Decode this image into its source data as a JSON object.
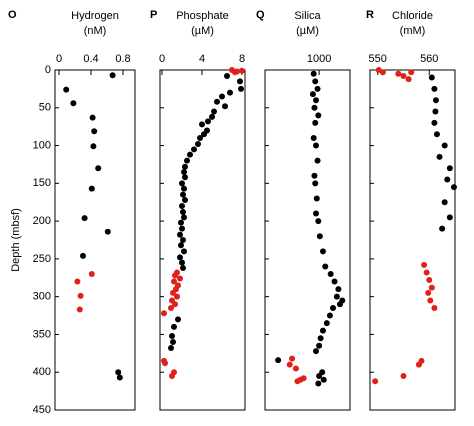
{
  "chart_data": [
    {
      "type": "scatter",
      "panel_label": "O",
      "title": "Hydrogen",
      "subtitle": "(nM)",
      "y_label": "Depth (mbsf)",
      "xlim": [
        -0.05,
        0.95
      ],
      "xticks": [
        0,
        0.4,
        0.8
      ],
      "ylim": [
        0,
        450
      ],
      "y_inverted": true,
      "yticks": [
        0,
        50,
        100,
        150,
        200,
        250,
        300,
        350,
        400,
        450
      ],
      "series": [
        {
          "color": "#000000",
          "x": [
            0.67,
            0.09,
            0.18,
            0.42,
            0.44,
            0.43,
            0.49,
            0.41,
            0.32,
            0.61,
            0.3,
            0.74,
            0.76
          ],
          "y": [
            7,
            26,
            44,
            63,
            81,
            101,
            130,
            157,
            196,
            214,
            246,
            400,
            407
          ]
        },
        {
          "color": "#e0201b",
          "x": [
            0.41,
            0.23,
            0.27,
            0.26
          ],
          "y": [
            270,
            280,
            299,
            317
          ]
        }
      ]
    },
    {
      "type": "scatter",
      "panel_label": "P",
      "title": "Phosphate",
      "subtitle": "(µM)",
      "xlim": [
        -0.2,
        8.3
      ],
      "xticks": [
        0,
        4,
        8
      ],
      "ylim": [
        0,
        450
      ],
      "y_inverted": true,
      "series": [
        {
          "color": "#000000",
          "x": [
            6.5,
            7.8,
            7.9,
            6.8,
            6.0,
            5.5,
            6.3,
            5.2,
            5.0,
            4.6,
            4.0,
            4.5,
            4.2,
            3.8,
            3.6,
            3.2,
            2.8,
            2.5,
            2.3,
            2.2,
            2.3,
            2.0,
            2.2,
            2.1,
            2.3,
            2.0,
            2.1,
            2.2,
            1.9,
            2.0,
            1.8,
            2.1,
            1.9,
            2.2,
            1.8,
            2.0,
            2.1,
            1.6,
            1.2,
            1.0,
            1.1,
            0.9
          ],
          "y": [
            8,
            15,
            25,
            30,
            35,
            42,
            48,
            55,
            62,
            68,
            72,
            80,
            85,
            90,
            98,
            105,
            112,
            120,
            128,
            135,
            142,
            150,
            157,
            165,
            172,
            180,
            188,
            195,
            202,
            210,
            218,
            225,
            232,
            240,
            248,
            255,
            262,
            330,
            340,
            352,
            360,
            368
          ]
        },
        {
          "color": "#e0201b",
          "x": [
            7.0,
            7.5,
            8.0,
            7.3,
            1.5,
            1.3,
            1.8,
            1.2,
            1.6,
            1.4,
            1.1,
            1.5,
            1.0,
            1.3,
            0.9,
            0.2,
            0.2,
            0.3,
            1.2,
            1.0
          ],
          "y": [
            0,
            2,
            1,
            3,
            268,
            272,
            276,
            280,
            285,
            290,
            295,
            300,
            305,
            310,
            315,
            322,
            385,
            388,
            400,
            405
          ]
        }
      ]
    },
    {
      "type": "scatter",
      "panel_label": "Q",
      "title": "Silica",
      "subtitle": "(µM)",
      "xlim": [
        300,
        1400
      ],
      "xticks": [
        1000
      ],
      "ylim": [
        0,
        450
      ],
      "y_inverted": true,
      "series": [
        {
          "color": "#000000",
          "x": [
            930,
            950,
            980,
            920,
            960,
            940,
            990,
            950,
            930,
            960,
            980,
            940,
            950,
            970,
            960,
            990,
            1010,
            1050,
            1080,
            1150,
            1200,
            1250,
            1230,
            1300,
            1270,
            1180,
            1140,
            1100,
            1050,
            1020,
            1000,
            960,
            470,
            1040,
            1000,
            1060,
            990
          ],
          "y": [
            5,
            15,
            25,
            32,
            40,
            50,
            60,
            70,
            90,
            100,
            120,
            140,
            150,
            170,
            190,
            200,
            220,
            240,
            260,
            270,
            280,
            290,
            300,
            305,
            310,
            315,
            325,
            335,
            345,
            355,
            365,
            372,
            384,
            400,
            405,
            410,
            415
          ]
        },
        {
          "color": "#e0201b",
          "x": [
            650,
            620,
            700,
            760,
            720,
            800
          ],
          "y": [
            382,
            390,
            395,
            410,
            412,
            408
          ]
        }
      ]
    },
    {
      "type": "scatter",
      "panel_label": "R",
      "title": "Chloride",
      "subtitle": "(mM)",
      "xlim": [
        548.5,
        565
      ],
      "xticks": [
        550,
        560
      ],
      "ylim": [
        0,
        450
      ],
      "y_inverted": true,
      "series": [
        {
          "color": "#000000",
          "x": [
            560.5,
            561,
            561.3,
            561.2,
            561,
            561.5,
            563,
            562,
            564,
            563.5,
            564.8,
            563,
            564,
            562.5
          ],
          "y": [
            10,
            25,
            40,
            55,
            70,
            85,
            100,
            115,
            130,
            145,
            155,
            175,
            195,
            210
          ]
        },
        {
          "color": "#e0201b",
          "x": [
            550.2,
            551,
            554,
            555,
            556,
            556.5,
            559,
            559.5,
            560,
            560.5,
            559.8,
            560.2,
            561,
            558.5,
            558,
            555,
            549.5
          ],
          "y": [
            0,
            3,
            5,
            8,
            12,
            3,
            258,
            268,
            278,
            288,
            295,
            305,
            315,
            385,
            390,
            405,
            412
          ]
        }
      ]
    }
  ]
}
